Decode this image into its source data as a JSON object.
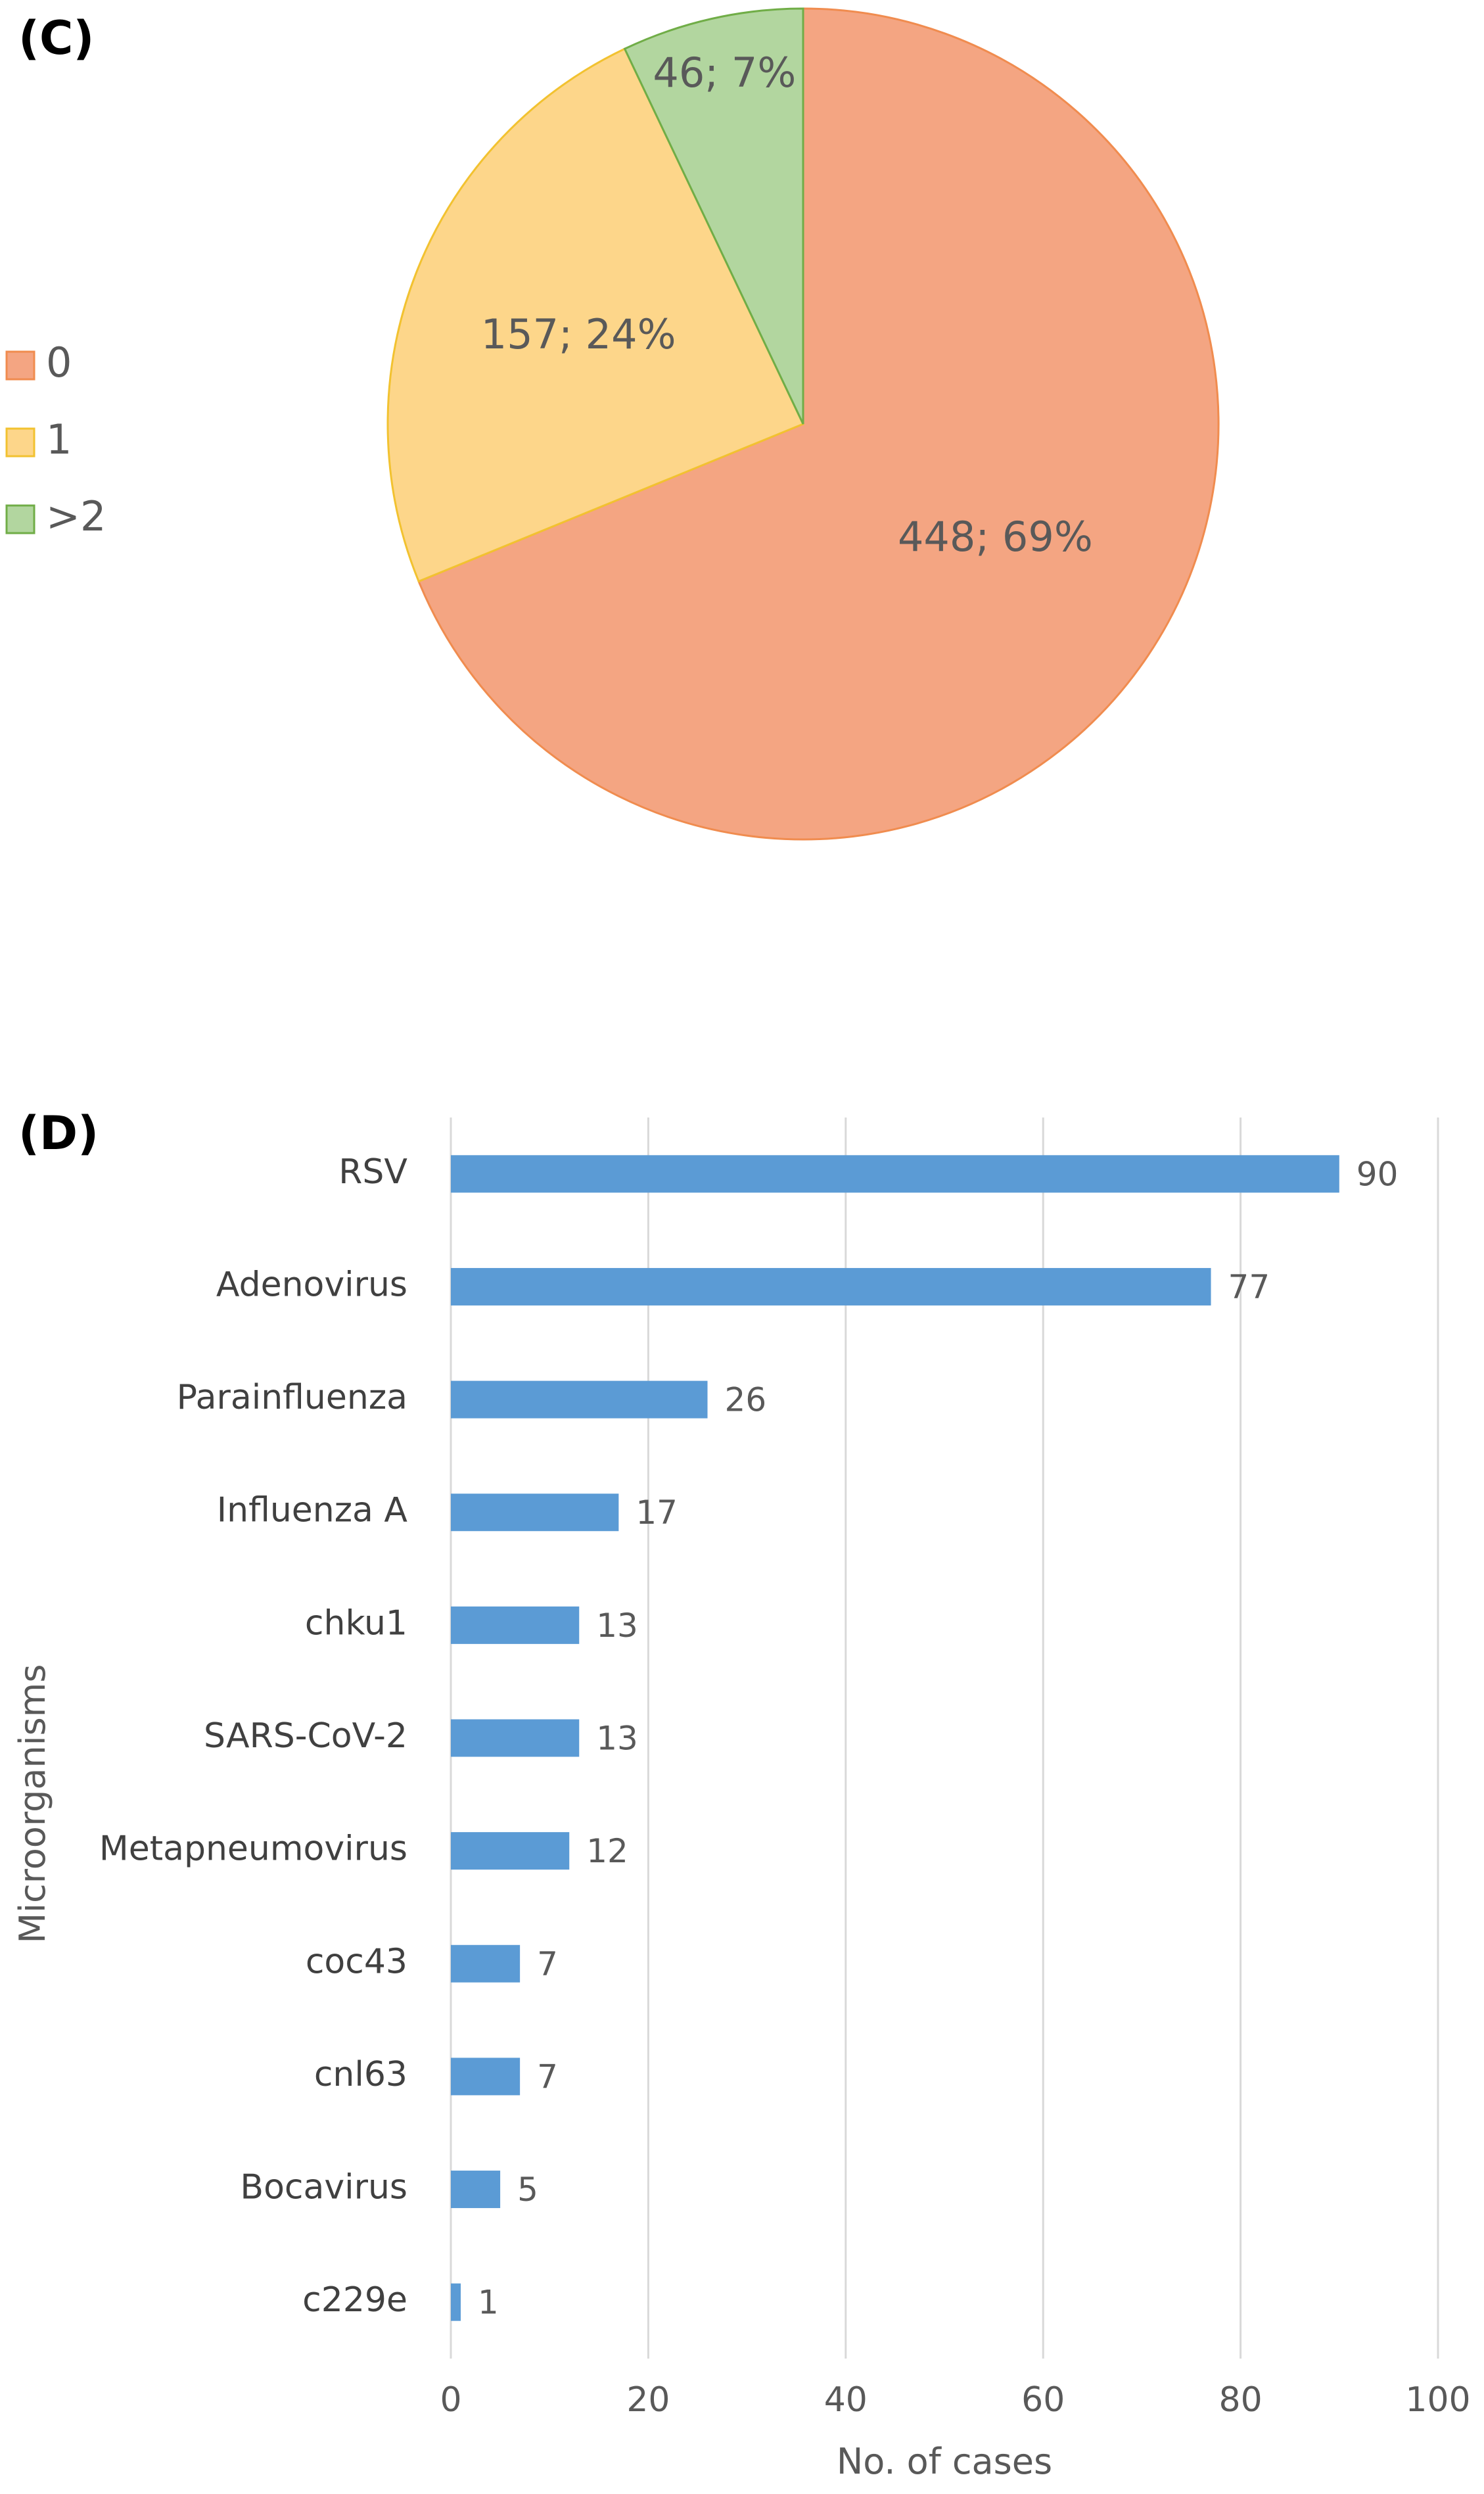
{
  "panels": {
    "c_label": "(C)",
    "d_label": "(D)"
  },
  "chart_data": [
    {
      "type": "pie",
      "panel": "(C)",
      "slices": [
        {
          "label": "0",
          "value": 448,
          "percent": 69,
          "data_label": "448; 69%",
          "color": "#F4A582",
          "stroke": "#F08C4F"
        },
        {
          "label": "1",
          "value": 157,
          "percent": 24,
          "data_label": "157; 24%",
          "color": "#FDD68A",
          "stroke": "#F2C230"
        },
        {
          "label": ">2",
          "value": 46,
          "percent": 7,
          "data_label": "46; 7%",
          "color": "#B2D69F",
          "stroke": "#70AD47"
        }
      ],
      "legend": {
        "placement": "left",
        "entries": [
          "0",
          "1",
          ">2"
        ]
      }
    },
    {
      "type": "bar",
      "orientation": "horizontal",
      "panel": "(D)",
      "categories": [
        "RSV",
        "Adenovirus",
        "Parainfluenza",
        "Influenza A",
        "chku1",
        "SARS-CoV-2",
        "Metapneumovirus",
        "coc43",
        "cnl63",
        "Bocavirus",
        "c229e"
      ],
      "values": [
        90,
        77,
        26,
        17,
        13,
        13,
        12,
        7,
        7,
        5,
        1
      ],
      "xlabel": "No. of cases",
      "ylabel": "Microorganisms",
      "xlim": [
        0,
        100
      ],
      "xticks": [
        "0",
        "20",
        "40",
        "60",
        "80",
        "100"
      ],
      "grid": "vertical",
      "bar_color": "#5B9BD5",
      "data_labels": true
    }
  ]
}
